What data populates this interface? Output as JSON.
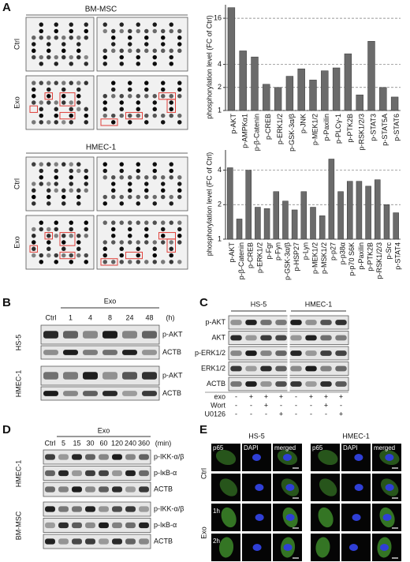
{
  "panel_a": {
    "letter": "A",
    "groups": [
      {
        "title": "BM-MSC",
        "rows": [
          "Ctrl",
          "Exo"
        ]
      },
      {
        "title": "HMEC-1",
        "rows": [
          "Ctrl",
          "Exo"
        ]
      }
    ]
  },
  "panel_b": {
    "letter": "B",
    "treatment": "Exo",
    "lanes": [
      "Ctrl",
      "1",
      "4",
      "8",
      "24",
      "48"
    ],
    "unit": "(h)",
    "groups": [
      {
        "cell": "HS-5",
        "rows": [
          "p-AKT",
          "ACTB"
        ]
      },
      {
        "cell": "HMEC-1",
        "rows": [
          "p-AKT",
          "ACTB"
        ]
      }
    ]
  },
  "panel_c": {
    "letter": "C",
    "cells": [
      "HS-5",
      "HMEC-1"
    ],
    "rows": [
      "p-AKT",
      "AKT",
      "p-ERK1/2",
      "ERK1/2",
      "ACTB"
    ],
    "treatments": [
      {
        "name": "exo",
        "signs": [
          "-",
          "+",
          "+",
          "+",
          "-",
          "+",
          "+",
          "+"
        ]
      },
      {
        "name": "Wort",
        "signs": [
          "-",
          "-",
          "+",
          "-",
          "-",
          "-",
          "+",
          "-"
        ]
      },
      {
        "name": "U0126",
        "signs": [
          "-",
          "-",
          "-",
          "+",
          "-",
          "-",
          "-",
          "+"
        ]
      }
    ]
  },
  "panel_d": {
    "letter": "D",
    "treatment": "Exo",
    "lanes": [
      "Ctrl",
      "5",
      "15",
      "30",
      "60",
      "120",
      "240",
      "360"
    ],
    "unit": "(min)",
    "groups": [
      {
        "cell": "HMEC-1",
        "rows": [
          "p-IKK-α/β",
          "p-IκB-α",
          "ACTB"
        ]
      },
      {
        "cell": "BM-MSC",
        "rows": [
          "p-IKK-α/β",
          "p-IκB-α",
          "ACTB"
        ]
      }
    ]
  },
  "panel_e": {
    "letter": "E",
    "cells": [
      {
        "name": "HS-5",
        "channels": [
          "p65",
          "DAPI",
          "merged"
        ]
      },
      {
        "name": "HMEC-1",
        "channels": [
          "p65",
          "DAPI",
          "merged"
        ]
      }
    ],
    "group_ctrl": "Ctrl",
    "group_exo": "Exo",
    "times": [
      "1h",
      "2h"
    ]
  },
  "chart_data": [
    {
      "type": "bar",
      "y_label": "phosphorylation level (FC of Ctrl)",
      "log_y": true,
      "grid": true,
      "color": "#6b6b6b",
      "categories": [
        "p-AKT",
        "p-AMPKα1",
        "p-β-Catenin",
        "p-CREB",
        "p-ERK1/2",
        "p-GSK-3α/β",
        "p-JNK",
        "p-MEK1/2",
        "p-Paxilin",
        "p-PLCγ-1",
        "p-PTK2B",
        "p-RSK1/2/3",
        "p-STAT3",
        "p-STAT5A",
        "p-STAT6"
      ],
      "values": [
        22,
        6,
        5,
        2.2,
        2,
        2.8,
        3.5,
        2.5,
        3.3,
        3.6,
        5.5,
        1.6,
        8,
        2,
        1.5
      ],
      "ylim": [
        1,
        24
      ],
      "yticks": [
        1,
        2,
        4,
        16
      ]
    },
    {
      "type": "bar",
      "y_label": "phosphorylation level (FC of Ctrl)",
      "log_y": true,
      "grid": true,
      "color": "#6b6b6b",
      "categories": [
        "p-AKT",
        "p-β-Catenin",
        "p-CREB",
        "p-ERK1/2",
        "p-Fgr",
        "p-Fyn",
        "p-GSK-3α/β",
        "p-HSP27",
        "p-Lyn",
        "p-MEK1/2",
        "p-MSK1/2",
        "p-p27",
        "p-p38α",
        "p-p70 S6K",
        "p-Paxilin",
        "p-PTK2B",
        "p-RSK1/2/3",
        "p-Src",
        "p-STAT4"
      ],
      "values": [
        4.2,
        1.5,
        4.0,
        1.9,
        1.85,
        2.6,
        2.15,
        1.8,
        2.6,
        1.9,
        1.6,
        5.0,
        2.6,
        3.2,
        3.2,
        2.9,
        3.3,
        2.0,
        1.7
      ],
      "ylim": [
        1,
        6
      ],
      "yticks": [
        1,
        2,
        4
      ]
    }
  ]
}
